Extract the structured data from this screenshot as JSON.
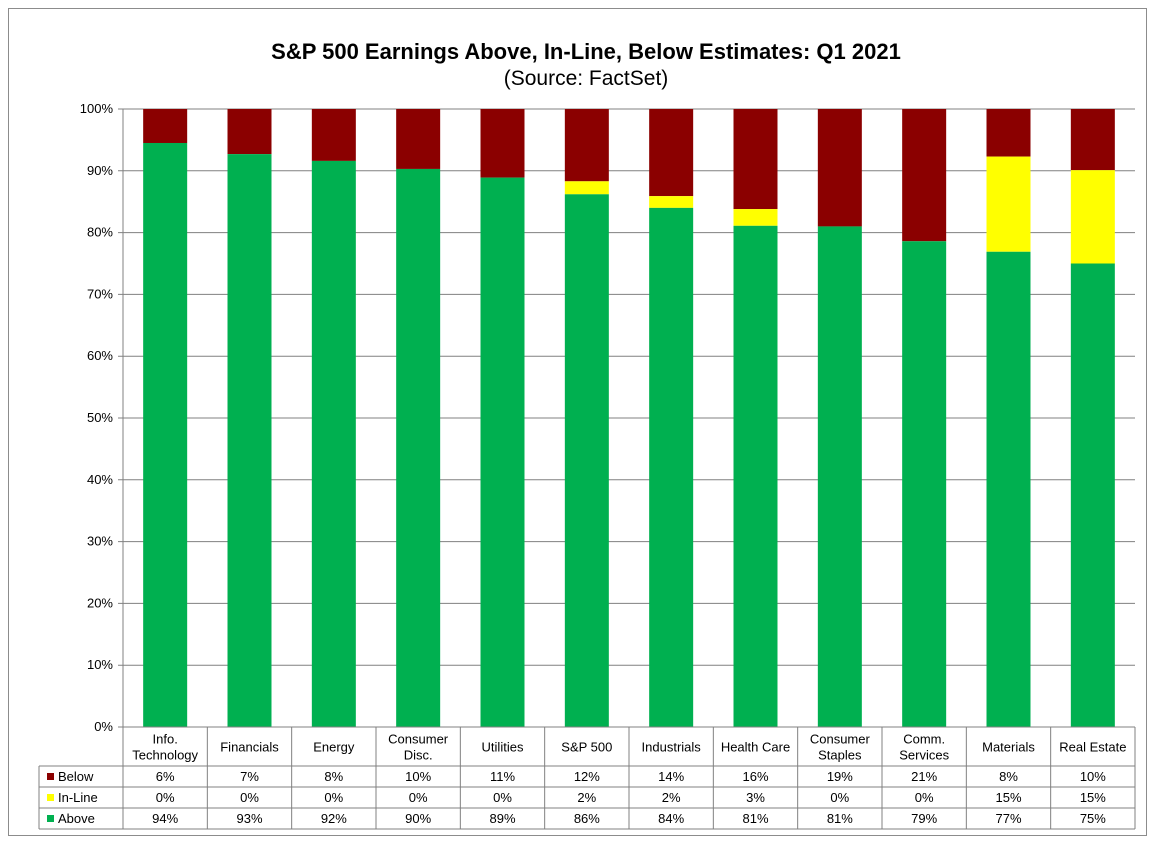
{
  "chart_data": {
    "type": "bar",
    "stacked": true,
    "title": "S&P 500 Earnings Above, In-Line, Below Estimates: Q1 2021",
    "subtitle": "(Source: FactSet)",
    "ylim": [
      0,
      100
    ],
    "y_ticks": [
      "0%",
      "10%",
      "20%",
      "30%",
      "40%",
      "50%",
      "60%",
      "70%",
      "80%",
      "90%",
      "100%"
    ],
    "grid": true,
    "legend": "data-table",
    "categories": [
      [
        "Info.",
        "Technology"
      ],
      [
        "Financials"
      ],
      [
        "Energy"
      ],
      [
        "Consumer",
        "Disc."
      ],
      [
        "Utilities"
      ],
      [
        "S&P 500"
      ],
      [
        "Industrials"
      ],
      [
        "Health Care"
      ],
      [
        "Consumer",
        "Staples"
      ],
      [
        "Comm.",
        "Services"
      ],
      [
        "Materials"
      ],
      [
        "Real Estate"
      ]
    ],
    "series": [
      {
        "name": "Below",
        "color": "#8B0000",
        "values": [
          6,
          7,
          8,
          10,
          11,
          12,
          14,
          16,
          19,
          21,
          8,
          10
        ],
        "labels": [
          "6%",
          "7%",
          "8%",
          "10%",
          "11%",
          "12%",
          "14%",
          "16%",
          "19%",
          "21%",
          "8%",
          "10%"
        ]
      },
      {
        "name": "In-Line",
        "color": "#FFFF00",
        "values": [
          0,
          0,
          0,
          0,
          0,
          2,
          2,
          3,
          0,
          0,
          15,
          15
        ],
        "labels": [
          "0%",
          "0%",
          "0%",
          "0%",
          "0%",
          "2%",
          "2%",
          "3%",
          "0%",
          "0%",
          "15%",
          "15%"
        ]
      },
      {
        "name": "Above",
        "color": "#00B050",
        "values": [
          94.5,
          92.7,
          91.6,
          90.3,
          88.9,
          86.2,
          84,
          81.1,
          81,
          78.6,
          76.9,
          75
        ],
        "labels": [
          "94%",
          "93%",
          "92%",
          "90%",
          "89%",
          "86%",
          "84%",
          "81%",
          "81%",
          "79%",
          "77%",
          "75%"
        ]
      }
    ],
    "stack_tops_inline": [
      94.5,
      92.7,
      91.6,
      90.3,
      88.9,
      88.3,
      85.9,
      83.8,
      81,
      78.6,
      92.3,
      90.1
    ]
  }
}
